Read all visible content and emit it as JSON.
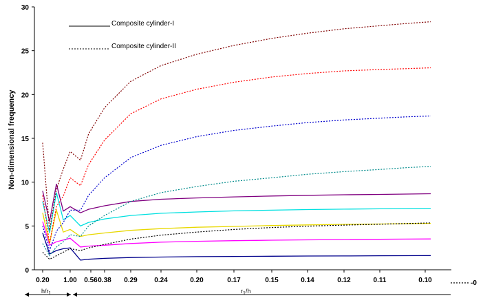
{
  "chart_data": {
    "type": "line",
    "ylabel": "Non-dimensional frequency",
    "ylim": [
      0,
      30
    ],
    "yticks": [
      "0",
      "5",
      "10",
      "15",
      "20",
      "25",
      "30"
    ],
    "x_tick_labels": [
      "0.20",
      "1.00",
      "0.56",
      "0.38",
      "0.29",
      "0.24",
      "0.20",
      "0.17",
      "0.15",
      "0.14",
      "0.12",
      "0.11",
      "0.10"
    ],
    "x_sub_label_1": "h/r",
    "x_sub_label_1_sub": "1",
    "x_sub_label_2": "r",
    "x_sub_label_2_sub": "1",
    "x_sub_label_2_tail": "/h",
    "outside_label": "-0",
    "legend": [
      {
        "label": "Composite cylinder-I",
        "style": "solid"
      },
      {
        "label": "Composite cylinder-II",
        "style": "dotted"
      }
    ],
    "x": [
      0,
      0.25,
      0.5,
      0.75,
      1,
      1.25,
      1.5,
      2,
      3,
      4,
      5,
      6,
      7,
      8,
      9,
      10,
      11,
      12
    ],
    "series": [
      {
        "color": "#00008b",
        "style": "solid",
        "values": [
          4.2,
          1.8,
          2.2,
          2.4,
          2.5,
          1.1,
          1.2,
          1.3,
          1.4,
          1.45,
          1.5,
          1.52,
          1.55,
          1.57,
          1.58,
          1.6,
          1.61,
          1.62
        ]
      },
      {
        "color": "#ff00ff",
        "style": "solid",
        "values": [
          5.5,
          2.8,
          3.2,
          3.4,
          3.6,
          2.6,
          2.7,
          2.8,
          3.0,
          3.15,
          3.25,
          3.32,
          3.38,
          3.42,
          3.45,
          3.48,
          3.5,
          3.52
        ]
      },
      {
        "color": "#e8d800",
        "style": "solid",
        "values": [
          6.5,
          3.0,
          6.8,
          4.3,
          4.6,
          3.8,
          4.0,
          4.2,
          4.5,
          4.7,
          4.85,
          4.95,
          5.05,
          5.12,
          5.18,
          5.22,
          5.26,
          5.3
        ]
      },
      {
        "color": "#00e0e0",
        "style": "solid",
        "values": [
          7.8,
          4.2,
          8.8,
          5.7,
          6.2,
          5.0,
          5.4,
          5.8,
          6.2,
          6.45,
          6.6,
          6.72,
          6.8,
          6.87,
          6.92,
          6.96,
          6.99,
          7.02
        ]
      },
      {
        "color": "#800080",
        "style": "solid",
        "values": [
          9.0,
          5.5,
          9.8,
          6.7,
          7.2,
          6.5,
          6.9,
          7.3,
          7.8,
          8.05,
          8.2,
          8.32,
          8.42,
          8.5,
          8.56,
          8.6,
          8.64,
          8.68
        ]
      },
      {
        "color": "#000000",
        "style": "dotted",
        "values": [
          2.0,
          1.2,
          1.6,
          2.0,
          2.4,
          2.2,
          2.5,
          2.9,
          3.5,
          3.95,
          4.3,
          4.6,
          4.82,
          4.98,
          5.1,
          5.2,
          5.28,
          5.35
        ]
      },
      {
        "color": "#008b8b",
        "style": "dotted",
        "values": [
          3.0,
          1.6,
          2.6,
          3.2,
          4.0,
          3.8,
          5.0,
          6.2,
          7.8,
          8.8,
          9.5,
          10.1,
          10.5,
          10.9,
          11.2,
          11.45,
          11.65,
          11.8
        ]
      },
      {
        "color": "#0000cd",
        "style": "dotted",
        "values": [
          5.0,
          2.2,
          4.4,
          5.4,
          6.8,
          6.8,
          8.5,
          10.5,
          12.8,
          14.2,
          15.2,
          15.9,
          16.4,
          16.8,
          17.1,
          17.3,
          17.45,
          17.55
        ]
      },
      {
        "color": "#ff0000",
        "style": "dotted",
        "values": [
          8.5,
          3.0,
          7.2,
          8.4,
          10.5,
          9.6,
          12.0,
          14.8,
          17.8,
          19.5,
          20.6,
          21.4,
          22.0,
          22.4,
          22.7,
          22.85,
          22.95,
          23.05
        ]
      },
      {
        "color": "#800000",
        "style": "dotted",
        "values": [
          14.5,
          4.5,
          9.2,
          11.5,
          13.5,
          12.5,
          15.5,
          18.5,
          21.5,
          23.3,
          24.6,
          25.6,
          26.4,
          27.0,
          27.5,
          27.85,
          28.1,
          28.3
        ]
      }
    ]
  }
}
